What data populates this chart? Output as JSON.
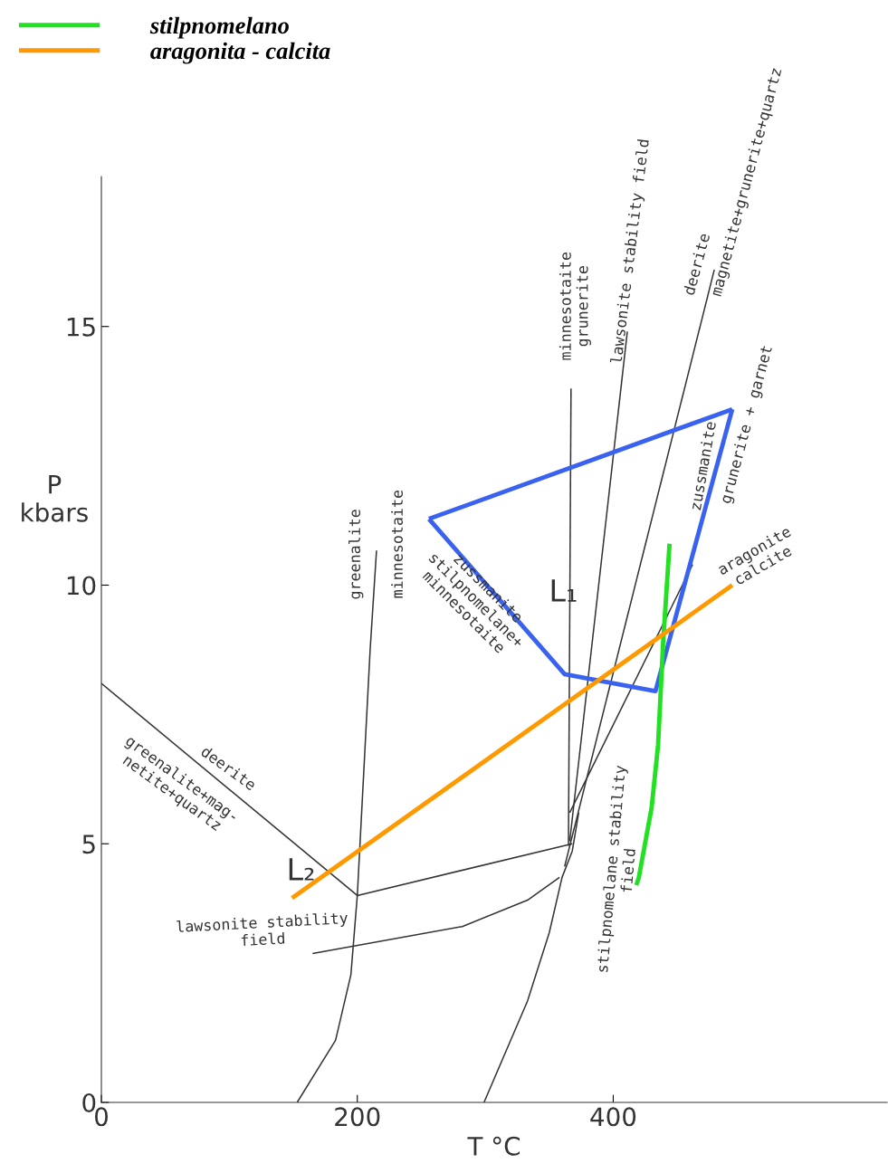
{
  "chart_data": {
    "type": "line",
    "xlabel": "T °C",
    "ylabel": "P\nkbars",
    "xlim": [
      0,
      614
    ],
    "ylim": [
      0,
      17.9
    ],
    "xticks": [
      0,
      200,
      400
    ],
    "yticks": [
      0,
      5,
      10,
      15
    ],
    "grid": false,
    "legend": "top left",
    "marker": "none",
    "line_style": "solid",
    "series": [
      {
        "color": "#333333",
        "x": [
          0,
          200
        ],
        "values": [
          8.1,
          4.0
        ]
      },
      {
        "color": "#333333",
        "x": [
          200,
          368
        ],
        "values": [
          4.0,
          5.0
        ]
      },
      {
        "color": "#333333",
        "x": [
          153,
          183,
          195,
          200,
          210,
          215
        ],
        "values": [
          0,
          1.2,
          2.47,
          4.0,
          8.74,
          10.67
        ]
      },
      {
        "color": "#333333",
        "x": [
          165,
          282,
          333,
          358
        ],
        "values": [
          2.88,
          3.4,
          3.91,
          4.35
        ]
      },
      {
        "color": "#333333",
        "x": [
          299,
          333,
          350,
          360,
          368,
          373
        ],
        "values": [
          0,
          1.96,
          3.28,
          4.35,
          4.86,
          5.6
        ]
      },
      {
        "color": "#333333",
        "x": [
          365,
          367
        ],
        "values": [
          4.96,
          13.8
        ]
      },
      {
        "color": "#333333",
        "x": [
          366,
          411
        ],
        "values": [
          5.05,
          14.9
        ]
      },
      {
        "color": "#333333",
        "x": [
          362,
          479
        ],
        "values": [
          4.56,
          16.1
        ]
      },
      {
        "color": "#333333",
        "x": [
          366,
          462
        ],
        "values": [
          5.6,
          10.4
        ]
      },
      {
        "color": "#3a62f0",
        "x": [
          256,
          493
        ],
        "values": [
          11.28,
          13.4
        ]
      },
      {
        "color": "#3a62f0",
        "x": [
          256,
          362,
          433,
          493
        ],
        "values": [
          11.28,
          8.28,
          7.95,
          13.4
        ]
      },
      {
        "name": "stilpnomelano",
        "color": "#22e022",
        "x": [
          418,
          420,
          430,
          435,
          439,
          444
        ],
        "values": [
          4.2,
          4.35,
          5.7,
          6.9,
          8.9,
          10.8
        ]
      },
      {
        "name": "aragonita - calcita",
        "color": "#ff9900",
        "x": [
          149,
          493
        ],
        "values": [
          3.95,
          10.0
        ]
      }
    ],
    "annotations": [
      "deerite",
      "greenalite+mag-\nnetite+quartz",
      "L₂",
      "lawsonite stability\nfield",
      "greenalite",
      "minnesotaite",
      "zussmanite\nstilpnomelane+\nminnesotaite",
      "L₁",
      "minnesotaite\ngrunerite",
      "lawsonite stability field",
      "deerite",
      "magnetite+grunerite+quartz",
      "zussmanite",
      "grunerite + garnet",
      "aragonite\ncalcite",
      "stilpnomelane stability\nfield"
    ]
  }
}
